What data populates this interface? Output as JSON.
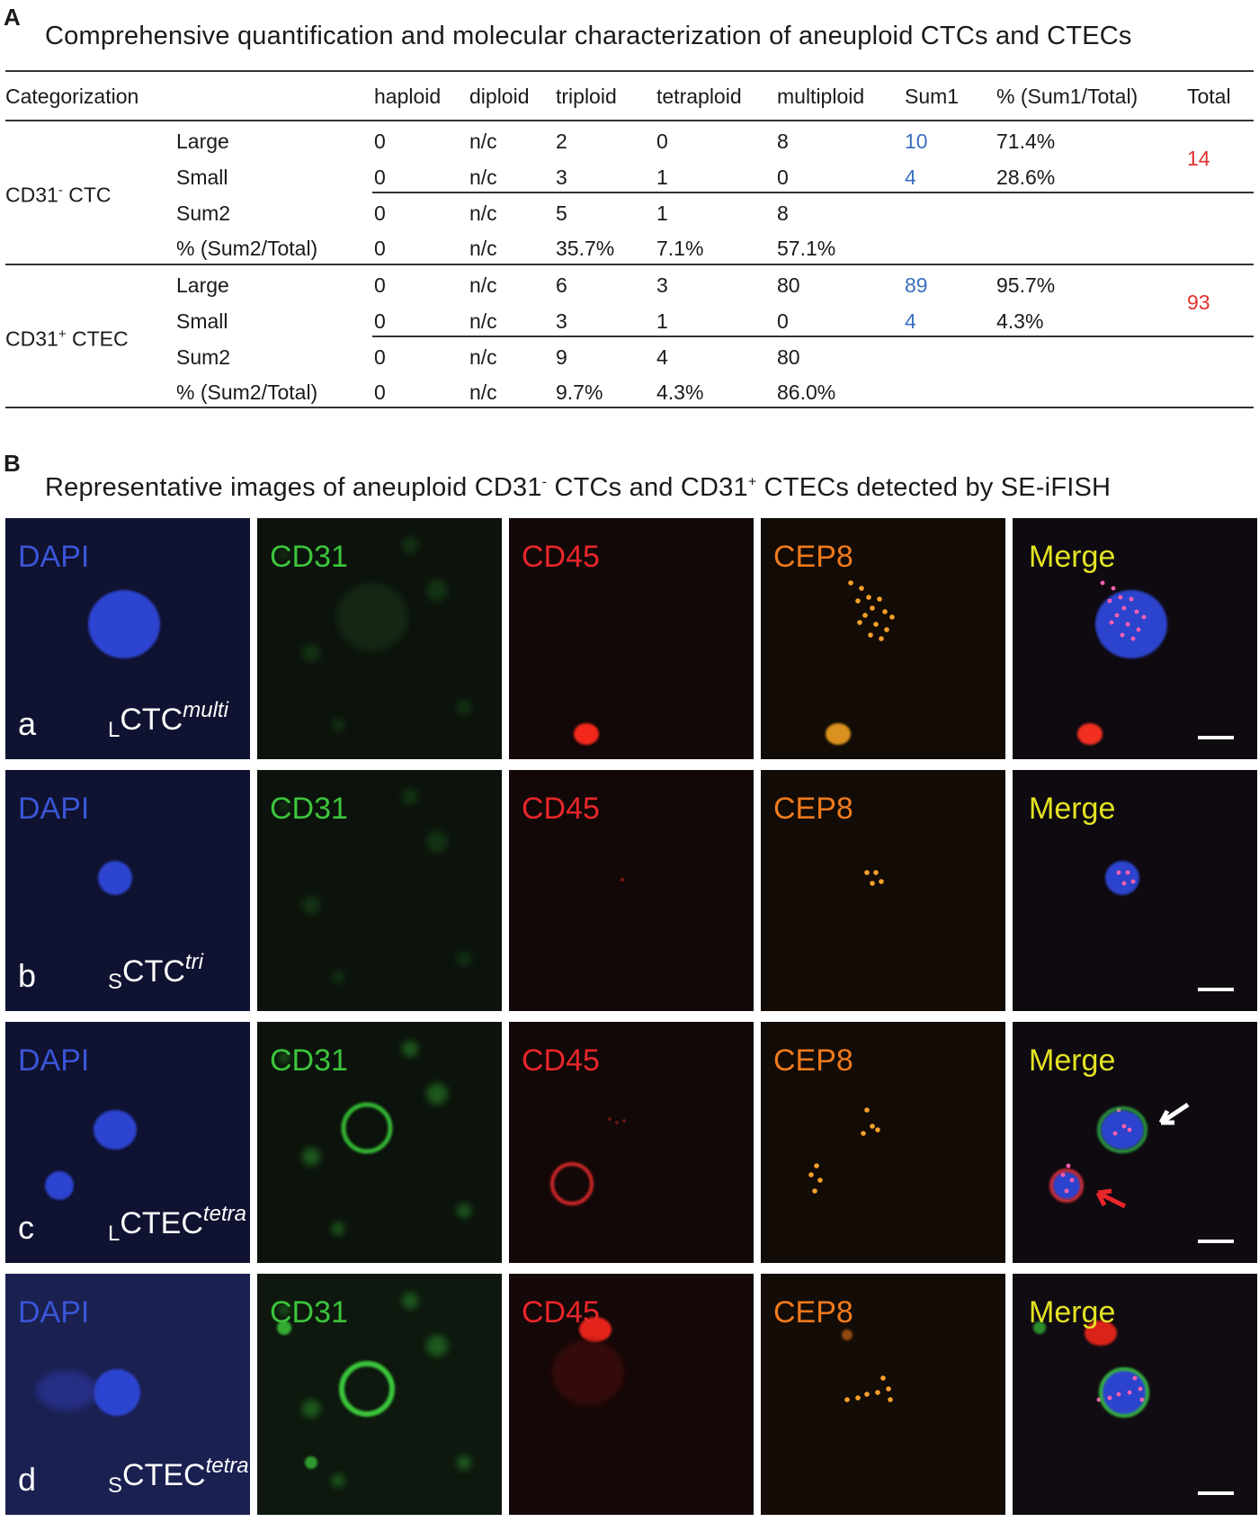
{
  "panelA": {
    "letter": "A",
    "title": "Comprehensive quantification and molecular characterization of aneuploid CTCs and CTECs",
    "headers": [
      "Categorization",
      "haploid",
      "diploid",
      "triploid",
      "tetraploid",
      "multiploid",
      "Sum1",
      "% (Sum1/Total)",
      "Total"
    ],
    "groups": [
      {
        "label": "CD31",
        "label_sign": "-",
        "label_suffix": " CTC",
        "total": "14",
        "rows": [
          {
            "sub": "Large",
            "values": [
              "0",
              "n/c",
              "2",
              "0",
              "8"
            ],
            "sum1": "10",
            "pct": "71.4%"
          },
          {
            "sub": "Small",
            "values": [
              "0",
              "n/c",
              "3",
              "1",
              "0"
            ],
            "sum1": "4",
            "pct": "28.6%"
          },
          {
            "sub": "Sum2",
            "values": [
              "0",
              "n/c",
              "5",
              "1",
              "8"
            ],
            "sum1": "",
            "pct": ""
          },
          {
            "sub": "% (Sum2/Total)",
            "values": [
              "0",
              "n/c",
              "35.7%",
              "7.1%",
              "57.1%"
            ],
            "sum1": "",
            "pct": ""
          }
        ]
      },
      {
        "label": "CD31",
        "label_sign": "+",
        "label_suffix": " CTEC",
        "total": "93",
        "rows": [
          {
            "sub": "Large",
            "values": [
              "0",
              "n/c",
              "6",
              "3",
              "80"
            ],
            "sum1": "89",
            "pct": "95.7%"
          },
          {
            "sub": "Small",
            "values": [
              "0",
              "n/c",
              "3",
              "1",
              "0"
            ],
            "sum1": "4",
            "pct": "4.3%"
          },
          {
            "sub": "Sum2",
            "values": [
              "0",
              "n/c",
              "9",
              "4",
              "80"
            ],
            "sum1": "",
            "pct": ""
          },
          {
            "sub": "% (Sum2/Total)",
            "values": [
              "0",
              "n/c",
              "9.7%",
              "4.3%",
              "86.0%"
            ],
            "sum1": "",
            "pct": ""
          }
        ]
      }
    ]
  },
  "panelB": {
    "letter": "B",
    "title_part1": "Representative images of aneuploid CD31",
    "title_sign1": "-",
    "title_part2": " CTCs and CD31",
    "title_sign2": "+",
    "title_part3": " CTECs detected by SE-iFISH",
    "channels": [
      "DAPI",
      "CD31",
      "CD45",
      "CEP8",
      "Merge"
    ],
    "channel_colors": [
      "#3a55d6",
      "#3cc43c",
      "#e8262a",
      "#f07a1c",
      "#e3e322"
    ],
    "rows": [
      {
        "letter": "a",
        "sub": "L",
        "base": "CTC",
        "sup": "multi"
      },
      {
        "letter": "b",
        "sub": "S",
        "base": "CTC",
        "sup": "tri"
      },
      {
        "letter": "c",
        "sub": "L",
        "base": "CTEC",
        "sup": "tetra"
      },
      {
        "letter": "d",
        "sub": "S",
        "base": "CTEC",
        "sup": "tetra"
      }
    ]
  }
}
